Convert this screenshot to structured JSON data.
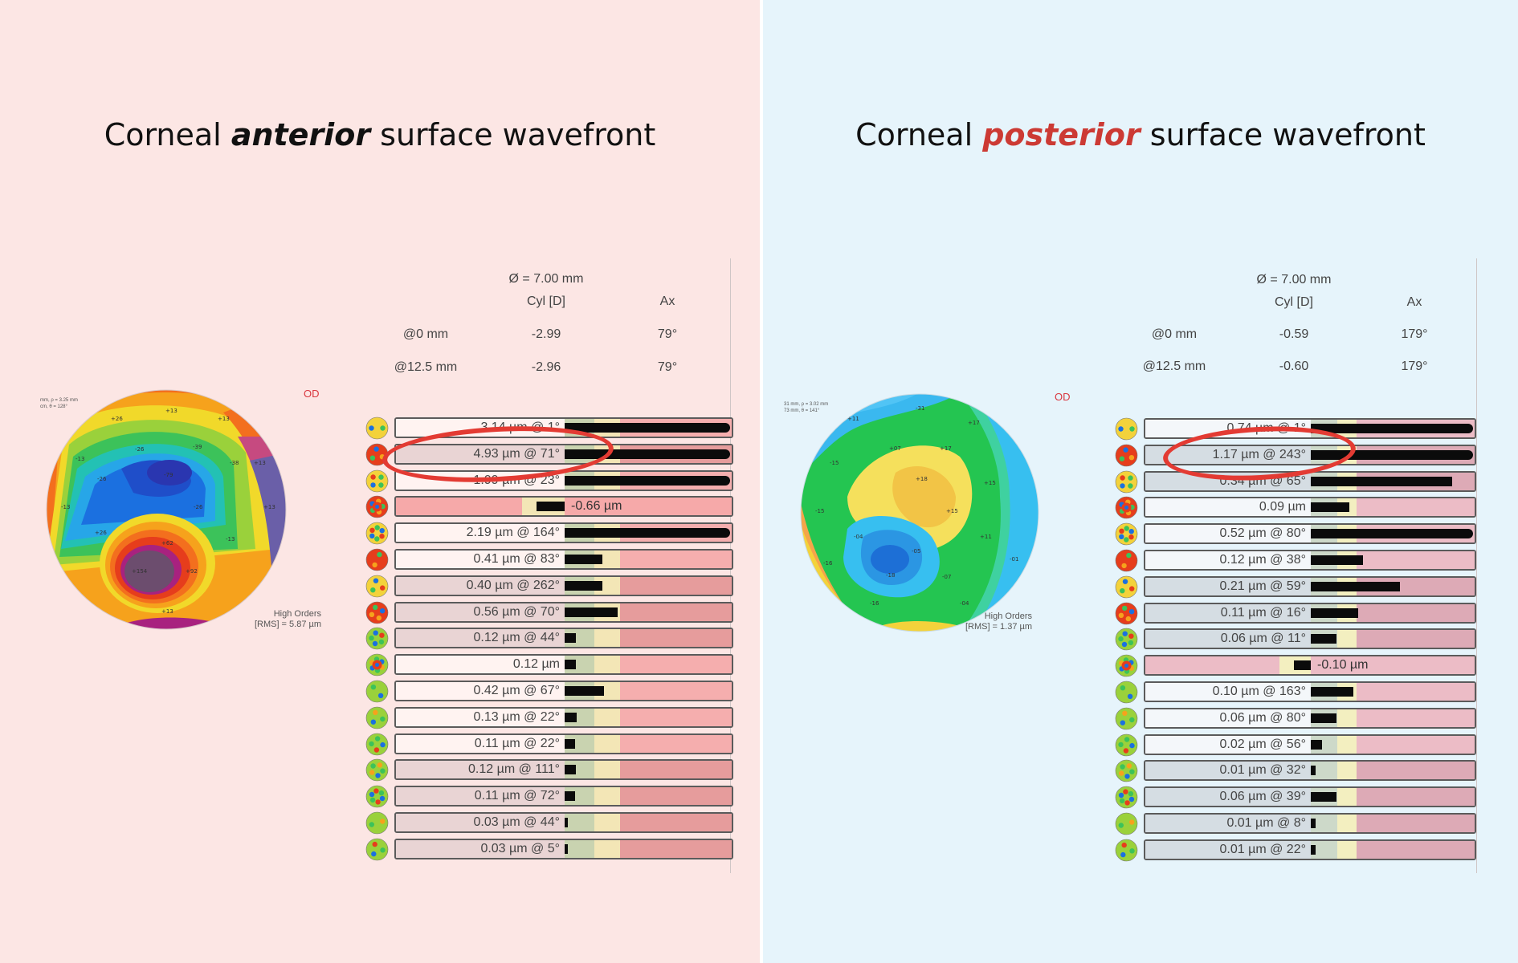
{
  "anterior": {
    "title_prefix": "Corneal ",
    "title_emph": "anterior",
    "title_suffix": " surface wavefront",
    "diameter": "Ø = 7.00 mm",
    "col_cyl": "Cyl [D]",
    "col_ax": "Ax",
    "rows": [
      {
        "label": "@0 mm",
        "cyl": "-2.99",
        "ax": "79°"
      },
      {
        "label": "@12.5 mm",
        "cyl": "-2.96",
        "ax": "79°"
      }
    ],
    "eye": "OD",
    "map_note": [
      "mm, ρ = 3.25 mm",
      "cm, θ = 128°"
    ],
    "hoa_title": "High Orders",
    "hoa_value": "[RMS] = 5.87 µm",
    "map_labels": [
      "+26",
      "+13",
      "+13",
      "-13",
      "-39",
      "-79",
      "-38",
      "-26",
      "+13",
      "-26",
      "-13",
      "-26",
      "+13",
      "+26",
      "+62",
      "+154",
      "+92",
      "-13",
      "+13"
    ],
    "terms": [
      {
        "label": "3.14 µm @ 1°",
        "value": 1.0,
        "negative": false,
        "value_label": ""
      },
      {
        "label": "4.93 µm @ 71°",
        "value": 1.0,
        "negative": false,
        "value_label": ""
      },
      {
        "label": "1.99 µm @ 23°",
        "value": 1.0,
        "negative": false,
        "value_label": ""
      },
      {
        "label": "",
        "value": 0.4,
        "negative": true,
        "value_label": "-0.66 µm"
      },
      {
        "label": "2.19 µm @ 164°",
        "value": 1.0,
        "negative": false,
        "value_label": ""
      },
      {
        "label": "0.41 µm @ 83°",
        "value": 0.23,
        "negative": false,
        "value_label": ""
      },
      {
        "label": "0.40 µm @ 262°",
        "value": 0.23,
        "negative": false,
        "value_label": ""
      },
      {
        "label": "0.56 µm @ 70°",
        "value": 0.32,
        "negative": false,
        "value_label": ""
      },
      {
        "label": "0.12 µm @ 44°",
        "value": 0.07,
        "negative": false,
        "value_label": ""
      },
      {
        "label": "0.12 µm",
        "value": 0.07,
        "negative": false,
        "value_label": ""
      },
      {
        "label": "0.42 µm @ 67°",
        "value": 0.24,
        "negative": false,
        "value_label": ""
      },
      {
        "label": "0.13 µm @ 22°",
        "value": 0.075,
        "negative": false,
        "value_label": ""
      },
      {
        "label": "0.11 µm @ 22°",
        "value": 0.065,
        "negative": false,
        "value_label": ""
      },
      {
        "label": "0.12 µm @ 111°",
        "value": 0.07,
        "negative": false,
        "value_label": ""
      },
      {
        "label": "0.11 µm @ 72°",
        "value": 0.065,
        "negative": false,
        "value_label": ""
      },
      {
        "label": "0.03 µm @ 44°",
        "value": 0.02,
        "negative": false,
        "value_label": ""
      },
      {
        "label": "0.03 µm @ 5°",
        "value": 0.02,
        "negative": false,
        "value_label": ""
      }
    ]
  },
  "posterior": {
    "title_prefix": "Corneal ",
    "title_emph": "posterior",
    "title_suffix": " surface wavefront",
    "diameter": "Ø = 7.00 mm",
    "col_cyl": "Cyl [D]",
    "col_ax": "Ax",
    "rows": [
      {
        "label": "@0 mm",
        "cyl": "-0.59",
        "ax": "179°"
      },
      {
        "label": "@12.5 mm",
        "cyl": "-0.60",
        "ax": "179°"
      }
    ],
    "eye": "OD",
    "map_note": [
      "31 mm, ρ = 3.02 mm",
      "73 mm, θ = 141°"
    ],
    "hoa_title": "High Orders",
    "hoa_value": "[RMS] = 1.37 µm",
    "map_labels": [
      "+11",
      "-31",
      "+17",
      "+07",
      "-15",
      "+17",
      "+18",
      "+15",
      "-15",
      "+15",
      "-04",
      "+11",
      "-16",
      "-05",
      "-18",
      "-07",
      "-01",
      "-04",
      "-16"
    ],
    "terms": [
      {
        "label": "0.74 µm @ 1°",
        "value": 1.0,
        "negative": false,
        "value_label": ""
      },
      {
        "label": "1.17 µm @ 243°",
        "value": 1.0,
        "negative": false,
        "value_label": ""
      },
      {
        "label": "0.34 µm @ 65°",
        "value": 0.87,
        "negative": false,
        "value_label": ""
      },
      {
        "label": "0.09 µm",
        "value": 0.24,
        "negative": false,
        "value_label": ""
      },
      {
        "label": "0.52 µm @ 80°",
        "value": 1.0,
        "negative": false,
        "value_label": ""
      },
      {
        "label": "0.12 µm @ 38°",
        "value": 0.32,
        "negative": false,
        "value_label": ""
      },
      {
        "label": "0.21 µm @ 59°",
        "value": 0.55,
        "negative": false,
        "value_label": ""
      },
      {
        "label": "0.11 µm @ 16°",
        "value": 0.29,
        "negative": false,
        "value_label": ""
      },
      {
        "label": "0.06 µm @ 11°",
        "value": 0.16,
        "negative": false,
        "value_label": ""
      },
      {
        "label": "",
        "value": 0.24,
        "negative": true,
        "value_label": "-0.10 µm"
      },
      {
        "label": "0.10 µm @ 163°",
        "value": 0.26,
        "negative": false,
        "value_label": ""
      },
      {
        "label": "0.06 µm @ 80°",
        "value": 0.16,
        "negative": false,
        "value_label": ""
      },
      {
        "label": "0.02 µm @ 56°",
        "value": 0.07,
        "negative": false,
        "value_label": ""
      },
      {
        "label": "0.01 µm @ 32°",
        "value": 0.03,
        "negative": false,
        "value_label": ""
      },
      {
        "label": "0.06 µm @ 39°",
        "value": 0.16,
        "negative": false,
        "value_label": ""
      },
      {
        "label": "0.01 µm @ 8°",
        "value": 0.03,
        "negative": false,
        "value_label": ""
      },
      {
        "label": "0.01 µm @ 22°",
        "value": 0.03,
        "negative": false,
        "value_label": ""
      }
    ]
  },
  "colors": {
    "left_bg": "#fce6e4",
    "right_bg": "#e6f4fb",
    "highlight": "#e33b33",
    "bar": "#0b0b0b"
  }
}
